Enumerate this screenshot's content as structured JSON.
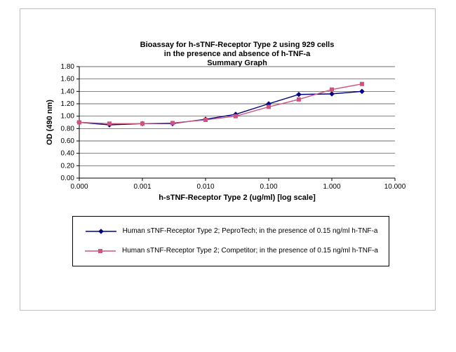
{
  "chart_data": {
    "type": "line",
    "title_lines": [
      "Bioassay for h-sTNF-Receptor Type 2 using 929 cells",
      "in the presence and absence of h-TNF-a",
      "Summary Graph"
    ],
    "xlabel": "h-sTNF-Receptor Type 2 (ug/ml) [log scale]",
    "ylabel": "OD (490 nm)",
    "x_scale": "log",
    "x_axis": {
      "min": 0.0001,
      "max": 10
    },
    "ylim": [
      0,
      1.8
    ],
    "grid": "horizontal",
    "legend_position": "bottom-box",
    "y_tick_labels": [
      "0.00",
      "0.20",
      "0.40",
      "0.60",
      "0.80",
      "1.00",
      "1.20",
      "1.40",
      "1.60",
      "1.80"
    ],
    "x_ticks": [
      {
        "value": 0.0001,
        "label": "0.000"
      },
      {
        "value": 0.001,
        "label": "0.001"
      },
      {
        "value": 0.01,
        "label": "0.010"
      },
      {
        "value": 0.1,
        "label": "0.100"
      },
      {
        "value": 1,
        "label": "1.000"
      },
      {
        "value": 10,
        "label": "10.000"
      }
    ],
    "x": [
      0.0001,
      0.0003,
      0.001,
      0.003,
      0.01,
      0.03,
      0.1,
      0.3,
      1,
      3
    ],
    "series": [
      {
        "name": "Human sTNF-Receptor Type 2; PeproTech; in the presence of 0.15 ng/ml h-TNF-a",
        "color": "#000080",
        "marker": "diamond",
        "values": [
          0.9,
          0.86,
          0.88,
          0.88,
          0.95,
          1.03,
          1.2,
          1.35,
          1.36,
          1.4
        ]
      },
      {
        "name": "Human sTNF-Receptor Type 2; Competitor; in the presence of 0.15 ng/ml h-TNF-a",
        "color": "#cc5580",
        "marker": "square",
        "values": [
          0.9,
          0.88,
          0.88,
          0.89,
          0.94,
          1.0,
          1.15,
          1.27,
          1.43,
          1.52
        ]
      }
    ]
  }
}
